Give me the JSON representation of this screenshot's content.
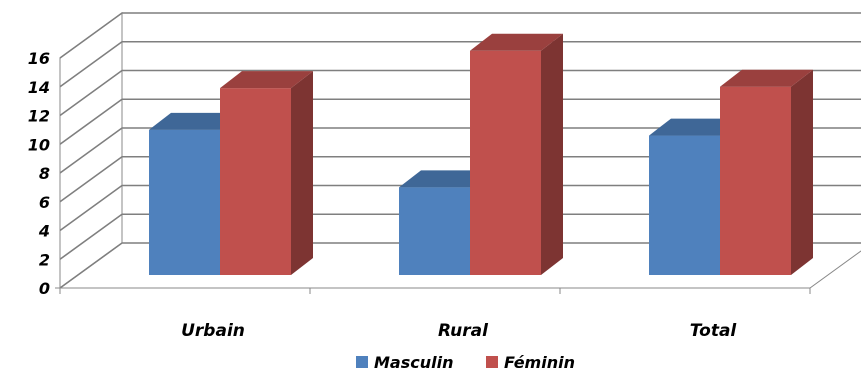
{
  "chart_data": {
    "type": "bar",
    "categories": [
      "Urbain",
      "Rural",
      "Total"
    ],
    "series": [
      {
        "name": "Masculin",
        "values": [
          10.1,
          6.1,
          9.7
        ],
        "color": "#4f81bd"
      },
      {
        "name": "Féminin",
        "values": [
          13.0,
          15.6,
          13.1
        ],
        "color": "#c0504d"
      }
    ],
    "ylim": [
      0,
      16
    ],
    "yticks": [
      0,
      2,
      4,
      6,
      8,
      10,
      12,
      14,
      16
    ],
    "grid": true,
    "legend_position": "bottom",
    "title": "",
    "xlabel": "",
    "ylabel": ""
  }
}
